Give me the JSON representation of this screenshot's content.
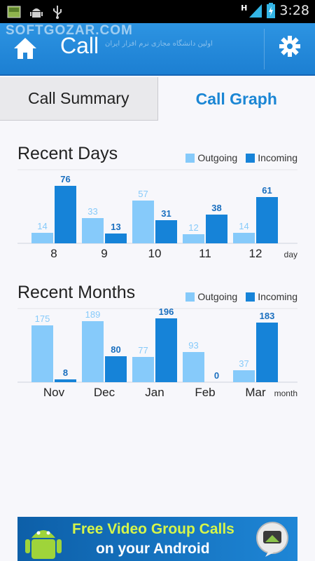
{
  "status_bar": {
    "time": "3:28",
    "network": "H",
    "icons": [
      "gallery-icon",
      "android-debug-icon",
      "usb-icon",
      "signal-icon",
      "battery-icon"
    ]
  },
  "action_bar": {
    "title": "Call",
    "watermark": "SOFTGOZAR.COM",
    "watermark_sub": "اولین دانشگاه مجازی نرم افزار ایران",
    "left_icon": "home-icon",
    "right_icon": "gear-icon"
  },
  "tabs": [
    {
      "label": "Call Summary",
      "selected": false
    },
    {
      "label": "Call Graph",
      "selected": true
    }
  ],
  "colors": {
    "outgoing": "#86cafa",
    "incoming": "#1683d8",
    "accent": "#1b86d4"
  },
  "days": {
    "title": "Recent Days",
    "legend": {
      "outgoing": "Outgoing",
      "incoming": "Incoming"
    },
    "chart_data": {
      "type": "bar",
      "categories": [
        "8",
        "9",
        "10",
        "11",
        "12"
      ],
      "xlabel": "day",
      "series": [
        {
          "name": "Outgoing",
          "values": [
            14,
            33,
            57,
            12,
            14
          ]
        },
        {
          "name": "Incoming",
          "values": [
            76,
            13,
            31,
            38,
            61
          ]
        }
      ],
      "ylim": [
        0,
        90
      ]
    }
  },
  "months": {
    "title": "Recent Months",
    "legend": {
      "outgoing": "Outgoing",
      "incoming": "Incoming"
    },
    "chart_data": {
      "type": "bar",
      "categories": [
        "Nov",
        "Dec",
        "Jan",
        "Feb",
        "Mar"
      ],
      "xlabel": "month",
      "series": [
        {
          "name": "Outgoing",
          "values": [
            175,
            189,
            77,
            93,
            37
          ]
        },
        {
          "name": "Incoming",
          "values": [
            8,
            80,
            196,
            0,
            183
          ]
        }
      ],
      "ylim": [
        0,
        210
      ]
    }
  },
  "ad": {
    "line1": "Free Video Group Calls",
    "line2": "on your Android"
  }
}
